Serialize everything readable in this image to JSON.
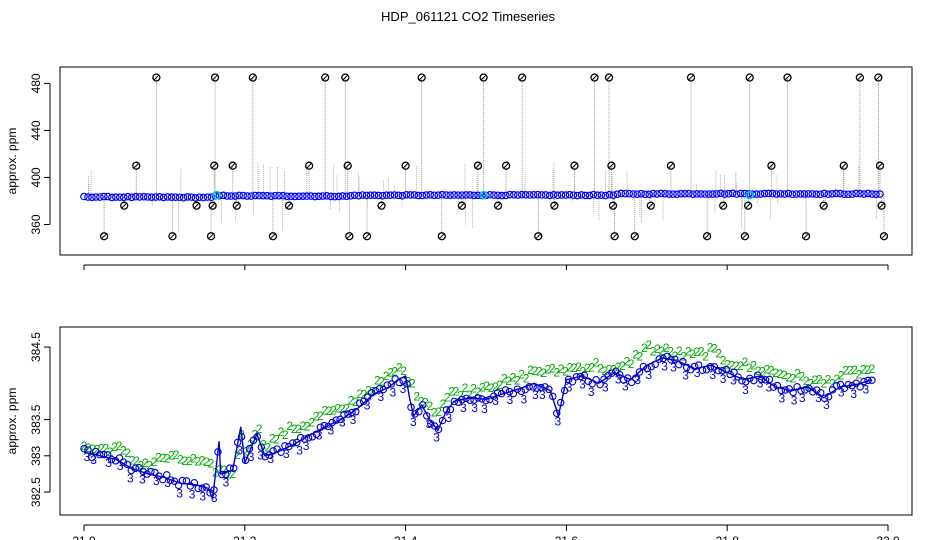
{
  "title": "HDP_061121  CO2 Timeseries",
  "chart_data": [
    {
      "type": "scatter",
      "ylabel": "approx. ppm",
      "xlim": [
        21.0,
        22.0
      ],
      "ylim": [
        340,
        488
      ],
      "xticks": [
        21.0,
        21.2,
        21.4,
        21.6,
        21.8,
        22.0
      ],
      "xtick_labels": [
        "21.0",
        "21.2",
        "21.4",
        "21.6",
        "21.8",
        "22.0"
      ],
      "yticks": [
        360,
        400,
        440,
        480
      ],
      "ytick_labels": [
        "360",
        "400",
        "440",
        "480"
      ],
      "colors": {
        "series": "#0000ff",
        "outliers": "#000000",
        "highlight": "#00cccc",
        "lines": "#808080"
      },
      "series": [
        {
          "baseline": [
            [
              21.0,
              383.5
            ],
            [
              21.16,
              383.0
            ],
            [
              21.165,
              384.5
            ],
            [
              21.33,
              384.0
            ],
            [
              21.335,
              384.8
            ],
            [
              21.5,
              385.0
            ],
            [
              21.66,
              385.0
            ],
            [
              21.665,
              386.0
            ],
            [
              21.8,
              386.2
            ],
            [
              21.99,
              386.0
            ]
          ],
          "outliers": [
            [
              21.025,
              350
            ],
            [
              21.05,
              376
            ],
            [
              21.065,
              410
            ],
            [
              21.09,
              485
            ],
            [
              21.11,
              350
            ],
            [
              21.14,
              376
            ],
            [
              21.158,
              350
            ],
            [
              21.16,
              376
            ],
            [
              21.162,
              410
            ],
            [
              21.163,
              485
            ],
            [
              21.185,
              410
            ],
            [
              21.19,
              376
            ],
            [
              21.21,
              485
            ],
            [
              21.235,
              350
            ],
            [
              21.255,
              376
            ],
            [
              21.28,
              410
            ],
            [
              21.3,
              485
            ],
            [
              21.325,
              485
            ],
            [
              21.328,
              410
            ],
            [
              21.33,
              350
            ],
            [
              21.352,
              350
            ],
            [
              21.37,
              376
            ],
            [
              21.4,
              410
            ],
            [
              21.42,
              485
            ],
            [
              21.445,
              350
            ],
            [
              21.47,
              376
            ],
            [
              21.49,
              410
            ],
            [
              21.497,
              485
            ],
            [
              21.515,
              376
            ],
            [
              21.525,
              410
            ],
            [
              21.545,
              485
            ],
            [
              21.565,
              350
            ],
            [
              21.585,
              376
            ],
            [
              21.61,
              410
            ],
            [
              21.635,
              485
            ],
            [
              21.653,
              485
            ],
            [
              21.656,
              410
            ],
            [
              21.658,
              376
            ],
            [
              21.66,
              350
            ],
            [
              21.685,
              350
            ],
            [
              21.705,
              376
            ],
            [
              21.73,
              410
            ],
            [
              21.755,
              485
            ],
            [
              21.775,
              350
            ],
            [
              21.795,
              376
            ],
            [
              21.822,
              350
            ],
            [
              21.826,
              376
            ],
            [
              21.828,
              485
            ],
            [
              21.855,
              410
            ],
            [
              21.875,
              485
            ],
            [
              21.898,
              350
            ],
            [
              21.92,
              376
            ],
            [
              21.945,
              410
            ],
            [
              21.965,
              485
            ],
            [
              21.988,
              485
            ],
            [
              21.99,
              410
            ],
            [
              21.992,
              376
            ],
            [
              21.995,
              350
            ]
          ],
          "highlights": [
            [
              21.165,
              385
            ],
            [
              21.497,
              385
            ],
            [
              21.828,
              385
            ]
          ]
        }
      ]
    },
    {
      "type": "line",
      "ylabel": "approx. ppm",
      "xlim": [
        21.0,
        22.0
      ],
      "ylim": [
        382.28,
        384.68
      ],
      "xticks": [
        21.0,
        21.2,
        21.4,
        21.6,
        21.8,
        22.0
      ],
      "xtick_labels": [
        "21.0",
        "21.2",
        "21.4",
        "21.6",
        "21.8",
        "22.0"
      ],
      "yticks": [
        382.5,
        383.0,
        383.5,
        384.5
      ],
      "ytick_labels": [
        "382.5",
        "383",
        "383.5",
        "384.5"
      ],
      "colors": {
        "series3": "#0000cc",
        "series2": "#00aa00"
      },
      "series": [
        {
          "name": "3",
          "points": [
            [
              21.0,
              383.05
            ],
            [
              21.02,
              383.0
            ],
            [
              21.04,
              382.95
            ],
            [
              21.06,
              382.82
            ],
            [
              21.08,
              382.75
            ],
            [
              21.1,
              382.7
            ],
            [
              21.12,
              382.62
            ],
            [
              21.14,
              382.6
            ],
            [
              21.155,
              382.55
            ],
            [
              21.16,
              382.4
            ],
            [
              21.168,
              383.2
            ],
            [
              21.17,
              382.75
            ],
            [
              21.185,
              382.8
            ],
            [
              21.195,
              383.4
            ],
            [
              21.2,
              382.9
            ],
            [
              21.215,
              383.3
            ],
            [
              21.225,
              383.0
            ],
            [
              21.24,
              383.05
            ],
            [
              21.26,
              383.15
            ],
            [
              21.28,
              383.28
            ],
            [
              21.3,
              383.4
            ],
            [
              21.32,
              383.5
            ],
            [
              21.34,
              383.65
            ],
            [
              21.36,
              383.85
            ],
            [
              21.38,
              383.95
            ],
            [
              21.39,
              384.05
            ],
            [
              21.4,
              384.1
            ],
            [
              21.405,
              383.8
            ],
            [
              21.41,
              383.55
            ],
            [
              21.42,
              383.7
            ],
            [
              21.43,
              383.5
            ],
            [
              21.44,
              383.35
            ],
            [
              21.45,
              383.6
            ],
            [
              21.46,
              383.75
            ],
            [
              21.48,
              383.8
            ],
            [
              21.5,
              383.78
            ],
            [
              21.52,
              383.85
            ],
            [
              21.54,
              383.92
            ],
            [
              21.56,
              384.0
            ],
            [
              21.58,
              383.9
            ],
            [
              21.59,
              383.55
            ],
            [
              21.6,
              384.05
            ],
            [
              21.62,
              384.1
            ],
            [
              21.64,
              384.0
            ],
            [
              21.66,
              384.15
            ],
            [
              21.68,
              384.05
            ],
            [
              21.7,
              384.25
            ],
            [
              21.72,
              384.35
            ],
            [
              21.74,
              384.3
            ],
            [
              21.76,
              384.2
            ],
            [
              21.78,
              384.25
            ],
            [
              21.8,
              384.15
            ],
            [
              21.82,
              384.05
            ],
            [
              21.84,
              384.1
            ],
            [
              21.86,
              383.95
            ],
            [
              21.88,
              383.9
            ],
            [
              21.9,
              383.95
            ],
            [
              21.92,
              383.8
            ],
            [
              21.94,
              383.95
            ],
            [
              21.96,
              383.98
            ],
            [
              21.98,
              384.05
            ]
          ]
        },
        {
          "name": "2",
          "points": [
            [
              21.0,
              383.12
            ],
            [
              21.02,
              383.08
            ],
            [
              21.04,
              383.12
            ],
            [
              21.06,
              382.95
            ],
            [
              21.08,
              382.88
            ],
            [
              21.1,
              382.98
            ],
            [
              21.12,
              382.95
            ],
            [
              21.14,
              382.92
            ],
            [
              21.155,
              382.85
            ],
            [
              21.168,
              382.8
            ],
            [
              21.185,
              382.75
            ],
            [
              21.195,
              383.3
            ],
            [
              21.2,
              383.05
            ],
            [
              21.215,
              383.4
            ],
            [
              21.225,
              383.15
            ],
            [
              21.24,
              383.25
            ],
            [
              21.26,
              383.38
            ],
            [
              21.28,
              383.45
            ],
            [
              21.3,
              383.6
            ],
            [
              21.32,
              383.6
            ],
            [
              21.34,
              383.82
            ],
            [
              21.36,
              383.95
            ],
            [
              21.38,
              384.1
            ],
            [
              21.39,
              384.2
            ],
            [
              21.4,
              384.15
            ],
            [
              21.41,
              383.9
            ],
            [
              21.42,
              383.8
            ],
            [
              21.43,
              383.7
            ],
            [
              21.44,
              383.6
            ],
            [
              21.45,
              383.78
            ],
            [
              21.46,
              383.88
            ],
            [
              21.48,
              383.9
            ],
            [
              21.5,
              383.98
            ],
            [
              21.52,
              384.0
            ],
            [
              21.54,
              384.05
            ],
            [
              21.56,
              384.18
            ],
            [
              21.58,
              384.15
            ],
            [
              21.6,
              384.2
            ],
            [
              21.62,
              384.22
            ],
            [
              21.64,
              384.25
            ],
            [
              21.66,
              384.15
            ],
            [
              21.68,
              384.3
            ],
            [
              21.7,
              384.5
            ],
            [
              21.72,
              384.45
            ],
            [
              21.74,
              384.4
            ],
            [
              21.76,
              384.38
            ],
            [
              21.78,
              384.45
            ],
            [
              21.8,
              384.3
            ],
            [
              21.82,
              384.25
            ],
            [
              21.84,
              384.2
            ],
            [
              21.86,
              384.15
            ],
            [
              21.88,
              384.1
            ],
            [
              21.9,
              384.05
            ],
            [
              21.92,
              384.0
            ],
            [
              21.94,
              384.1
            ],
            [
              21.96,
              384.15
            ],
            [
              21.98,
              384.2
            ]
          ]
        }
      ]
    }
  ]
}
